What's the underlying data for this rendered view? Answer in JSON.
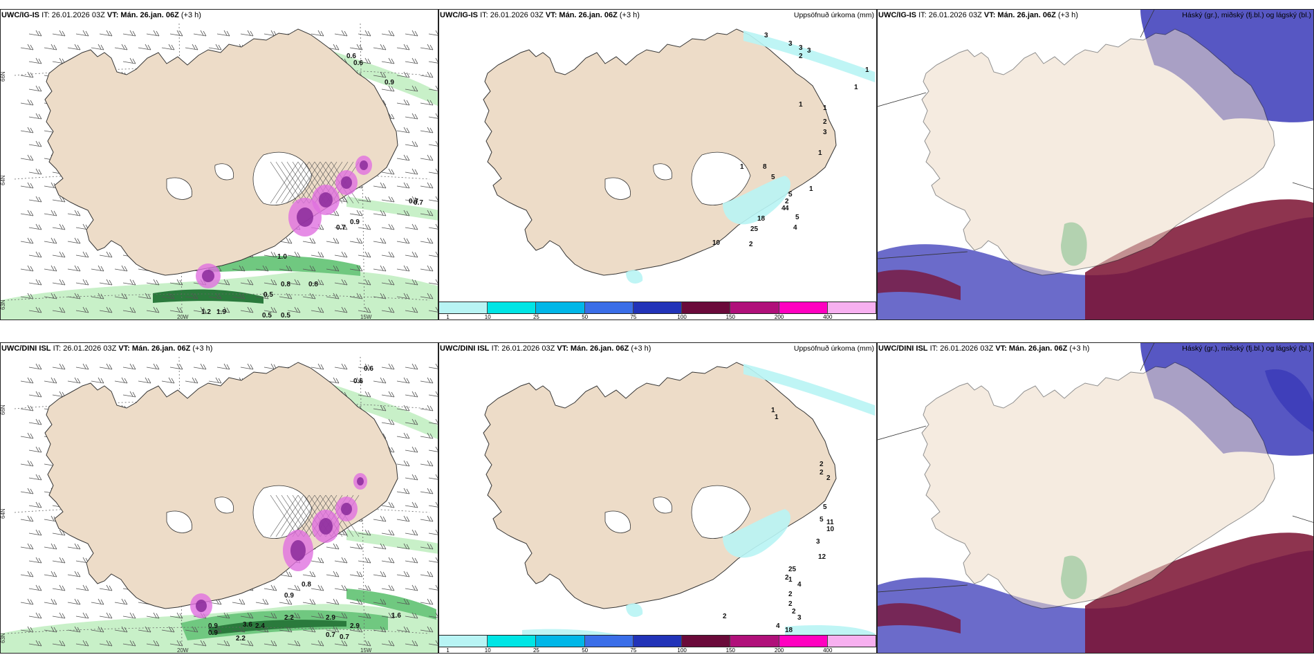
{
  "panels": [
    {
      "id": "ig-wind",
      "model": "UWC/IG-IS",
      "it": "IT: 26.01.2026 03Z",
      "vt_label": "VT:",
      "vt": "Mán. 26.jan. 06Z",
      "lead": "(+3 h)",
      "right_title": ""
    },
    {
      "id": "ig-precip",
      "model": "UWC/IG-IS",
      "it": "IT: 26.01.2026 03Z",
      "vt_label": "VT:",
      "vt": "Mán. 26.jan. 06Z",
      "lead": "(+3 h)",
      "right_title": "Uppsöfnuð úrkoma (mm)"
    },
    {
      "id": "ig-cloud",
      "model": "UWC/IG-IS",
      "it": "IT: 26.01.2026 03Z",
      "vt_label": "VT:",
      "vt": "Mán. 26.jan. 06Z",
      "lead": "(+3 h)",
      "right_title": "Háský (gr.), miðský (fj.bl.) og lágský (bl.)"
    },
    {
      "id": "dini-wind",
      "model": "UWC/DINI ISL",
      "it": "IT: 26.01.2026 03Z",
      "vt_label": "VT:",
      "vt": "Mán. 26.jan. 06Z",
      "lead": "(+3 h)",
      "right_title": ""
    },
    {
      "id": "dini-precip",
      "model": "UWC/DINI ISL",
      "it": "IT: 26.01.2026 03Z",
      "vt_label": "VT:",
      "vt": "Mán. 26.jan. 06Z",
      "lead": "(+3 h)",
      "right_title": "Uppsöfnuð úrkoma (mm)"
    },
    {
      "id": "dini-cloud",
      "model": "UWC/DINI ISL",
      "it": "IT: 26.01.2026 03Z",
      "vt_label": "VT:",
      "vt": "Mán. 26.jan. 06Z",
      "lead": "(+3 h)",
      "right_title": "Háský (gr.), miðský (fj.bl.) og lágský (bl.)"
    }
  ],
  "axis_labels": {
    "lat66": "66N",
    "lat64": "64N",
    "lat63": "63N",
    "lon20": "20W",
    "lon15": "15W"
  },
  "colorbar": {
    "ticks": [
      "1",
      "10",
      "25",
      "50",
      "75",
      "100",
      "150",
      "200",
      "400"
    ],
    "colors": [
      "#b8f4f4",
      "#00e5e5",
      "#00b7e8",
      "#3a6ee8",
      "#2233b8",
      "#6a0a3a",
      "#b0107a",
      "#ff00c0",
      "#f7b0f0"
    ]
  },
  "wind_labels_ig": [
    "0.6",
    "0.6",
    "0.9",
    "0.7",
    "0.9",
    "0.7",
    "1.0",
    "0.5",
    "0.8",
    "0.8",
    "0.5",
    "1.2",
    "1.9",
    "0.5",
    "0.7"
  ],
  "wind_labels_dini": [
    "0.6",
    "0.6",
    "0.8",
    "0.9",
    "0.9",
    "0.9",
    "2.2",
    "2.9",
    "2.9",
    "1.6",
    "3.6",
    "2.2",
    "0.7",
    "0.7",
    "2.4"
  ],
  "precip_labels_ig": [
    "3",
    "3",
    "3",
    "3",
    "2",
    "1",
    "1",
    "1",
    "1",
    "2",
    "3",
    "1",
    "1",
    "8",
    "5",
    "5",
    "1",
    "4",
    "5",
    "4",
    "2",
    "10",
    "25",
    "18",
    "4",
    "2"
  ],
  "precip_labels_dini": [
    "1",
    "1",
    "2",
    "2",
    "2",
    "5",
    "5",
    "11",
    "10",
    "12",
    "3",
    "25",
    "2",
    "1",
    "4",
    "2",
    "2",
    "2",
    "2",
    "3",
    "4",
    "18"
  ],
  "colors": {
    "land": "#eddcc8",
    "green_light": "#c8f0c8",
    "green_mid": "#70c880",
    "green_dark": "#2a7a3c",
    "purple": "#8a2a9a",
    "magenta": "#e070e0",
    "sea": "#ffffff",
    "cloud_blue": "#3a3ab8",
    "cloud_red": "#7a1030",
    "cloud_green": "#4ab878"
  }
}
